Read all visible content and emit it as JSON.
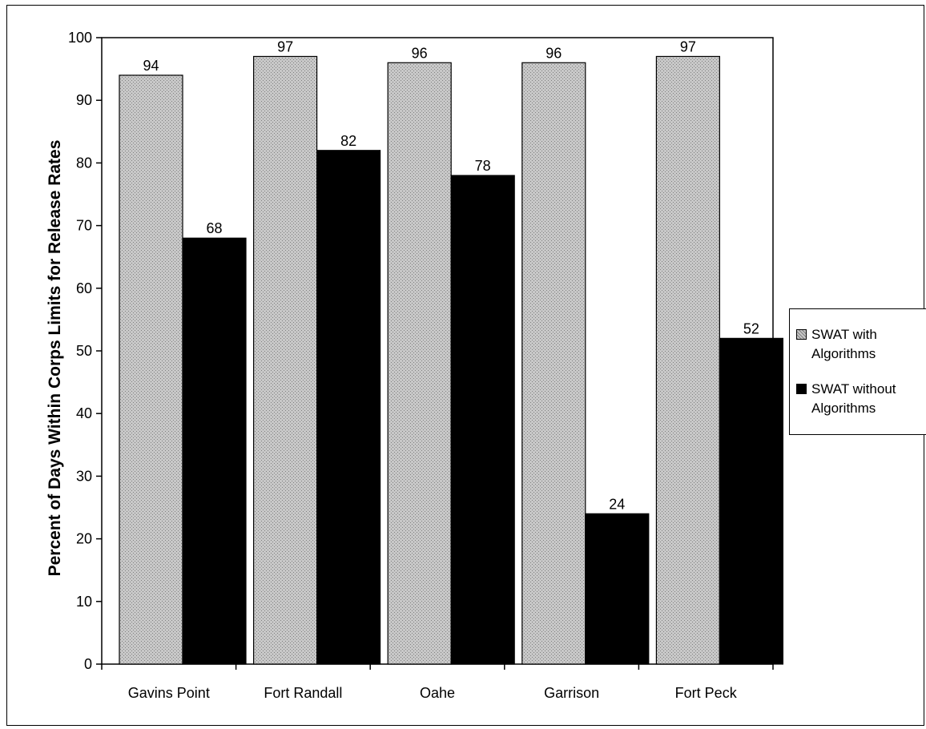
{
  "chart_data": {
    "type": "bar",
    "categories": [
      "Gavins Point",
      "Fort Randall",
      "Oahe",
      "Garrison",
      "Fort Peck"
    ],
    "series": [
      {
        "name": "SWAT with Algorithms",
        "values": [
          94,
          97,
          96,
          96,
          97
        ],
        "color": "#bdbdbd",
        "pattern": "crosshatch"
      },
      {
        "name": "SWAT without Algorithms",
        "values": [
          68,
          82,
          78,
          24,
          52
        ],
        "color": "#000000"
      }
    ],
    "xlabel": "",
    "ylabel": "Percent of Days Within Corps Limits for Release Rates",
    "ylim": [
      0,
      100
    ],
    "yticks": [
      "0",
      "10",
      "20",
      "30",
      "40",
      "50",
      "60",
      "70",
      "80",
      "90",
      "100"
    ],
    "data_labels": true,
    "grid": false,
    "legend_position": "right"
  },
  "legend": {
    "items": [
      {
        "label_line1": "SWAT with",
        "label_line2": "Algorithms"
      },
      {
        "label_line1": "SWAT without",
        "label_line2": "Algorithms"
      }
    ]
  }
}
